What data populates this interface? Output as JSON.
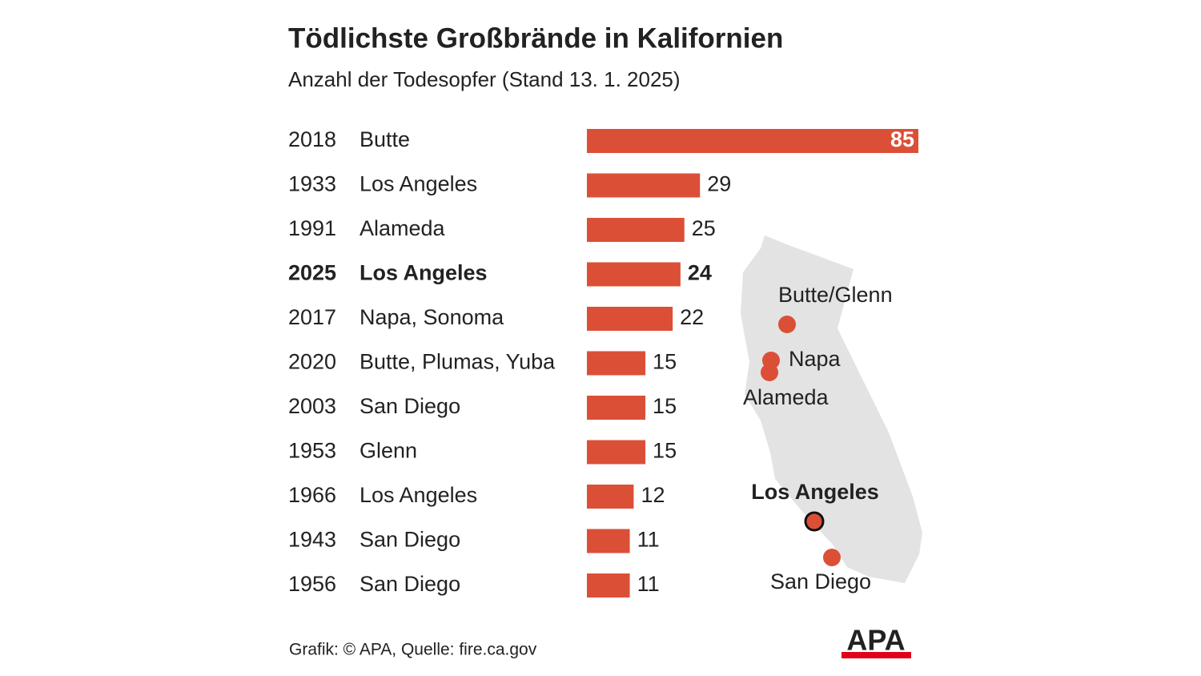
{
  "chart_data": {
    "type": "bar",
    "orientation": "horizontal",
    "title": "Tödlichste Großbrände in Kalifornien",
    "subtitle": "Anzahl der Todesopfer (Stand 13. 1. 2025)",
    "years": [
      "2018",
      "1933",
      "1991",
      "2025",
      "2017",
      "2020",
      "2003",
      "1953",
      "1966",
      "1943",
      "1956"
    ],
    "categories": [
      "Butte",
      "Los Angeles",
      "Alameda",
      "Los Angeles",
      "Napa, Sonoma",
      "Butte, Plumas, Yuba",
      "San Diego",
      "Glenn",
      "Los Angeles",
      "San Diego",
      "San Diego"
    ],
    "values": [
      85,
      29,
      25,
      24,
      22,
      15,
      15,
      15,
      12,
      11,
      11
    ],
    "color": "#dc4f37",
    "highlight": [
      3
    ],
    "map_labels": [
      "Butte/Glenn",
      "Napa",
      "Alameda",
      "Los Angeles",
      "San Diego"
    ],
    "source": "Grafik: © APA, Quelle: fire.ca.gov",
    "logo": "APA"
  }
}
